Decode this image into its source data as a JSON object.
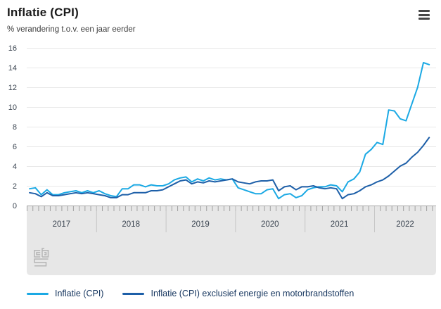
{
  "header": {
    "title": "Inflatie (CPI)",
    "subtitle": "% verandering t.o.v. een jaar eerder",
    "menu_icon": "hamburger-menu-icon"
  },
  "branding": {
    "logo": "cbs-logo"
  },
  "legend": {
    "items": [
      {
        "label": "Inflatie (CPI)",
        "color": "#1ba9e4"
      },
      {
        "label": "Inflatie (CPI) exclusief energie en motorbrandstoffen",
        "color": "#1d5fa8"
      }
    ]
  },
  "style": {
    "grid_color": "#e8e8e8",
    "panel_color": "#e7e7e7",
    "panel_border_color": "#aaaaaa",
    "tick_color": "#a0a0a0",
    "year_separator_color": "#c6c6c6",
    "axis_text_color": "#3a4450",
    "logo_color": "#b5b5b5"
  },
  "chart_data": {
    "type": "line",
    "title": "Inflatie (CPI)",
    "ylabel": "% verandering t.o.v. een jaar eerder",
    "x_start": "2017-01",
    "x_end": "2022-10",
    "x_years": [
      "2017",
      "2018",
      "2019",
      "2020",
      "2021",
      "2022"
    ],
    "ylim": [
      0,
      16
    ],
    "yticks": [
      0,
      2,
      4,
      6,
      8,
      10,
      12,
      14,
      16
    ],
    "grid": true,
    "legend_position": "bottom",
    "series": [
      {
        "name": "Inflatie (CPI)",
        "color": "#1ba9e4",
        "values": [
          1.7,
          1.8,
          1.1,
          1.6,
          1.1,
          1.1,
          1.3,
          1.4,
          1.5,
          1.3,
          1.5,
          1.3,
          1.5,
          1.2,
          1.0,
          0.9,
          1.7,
          1.7,
          2.1,
          2.1,
          1.9,
          2.1,
          2.0,
          2.0,
          2.2,
          2.6,
          2.8,
          2.9,
          2.4,
          2.7,
          2.5,
          2.8,
          2.6,
          2.7,
          2.6,
          2.7,
          1.8,
          1.6,
          1.4,
          1.2,
          1.2,
          1.6,
          1.7,
          0.7,
          1.1,
          1.2,
          0.8,
          1.0,
          1.6,
          1.8,
          1.9,
          1.9,
          2.1,
          2.0,
          1.4,
          2.4,
          2.7,
          3.4,
          5.2,
          5.7,
          6.4,
          6.2,
          9.7,
          9.6,
          8.8,
          8.6,
          10.3,
          12.0,
          14.5,
          14.3
        ]
      },
      {
        "name": "Inflatie (CPI) exclusief energie en motorbrandstoffen",
        "color": "#1d5fa8",
        "values": [
          1.3,
          1.2,
          0.9,
          1.3,
          1.0,
          1.0,
          1.1,
          1.2,
          1.3,
          1.2,
          1.3,
          1.2,
          1.1,
          1.0,
          0.8,
          0.8,
          1.1,
          1.1,
          1.3,
          1.3,
          1.3,
          1.5,
          1.5,
          1.6,
          1.9,
          2.2,
          2.5,
          2.6,
          2.2,
          2.4,
          2.3,
          2.5,
          2.4,
          2.5,
          2.6,
          2.7,
          2.4,
          2.3,
          2.2,
          2.4,
          2.5,
          2.5,
          2.6,
          1.5,
          1.9,
          2.0,
          1.6,
          1.9,
          1.9,
          2.0,
          1.8,
          1.7,
          1.8,
          1.7,
          0.7,
          1.1,
          1.2,
          1.5,
          1.9,
          2.1,
          2.4,
          2.6,
          3.0,
          3.5,
          4.0,
          4.3,
          4.9,
          5.4,
          6.1,
          6.9
        ]
      }
    ]
  }
}
